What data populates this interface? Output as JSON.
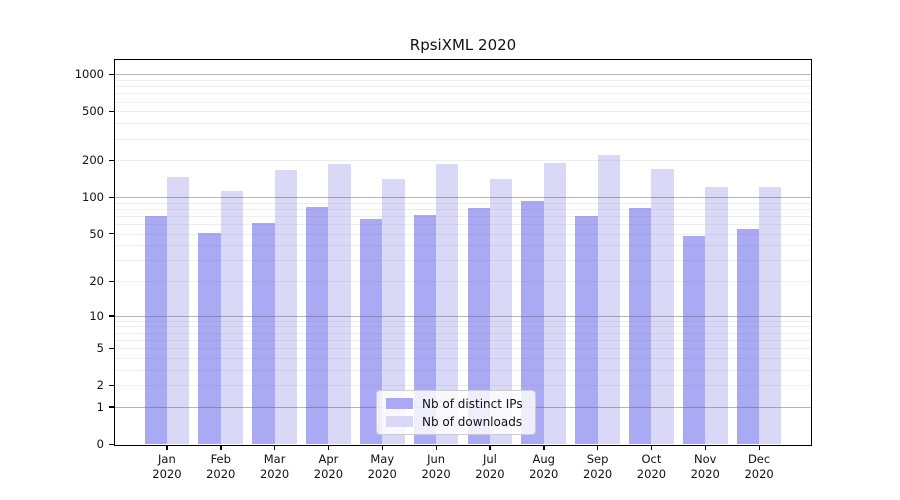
{
  "title": "RpsiXML 2020",
  "colors": {
    "background": "#ffffff",
    "ips_bar": "#a9a9f4",
    "downloads_bar": "#d9d9f7",
    "axis": "#000000",
    "grid_major": "#b5b5b5",
    "grid_minor": "#e9e9e9",
    "legend_border": "#cccccc"
  },
  "legend": {
    "items": [
      {
        "label": "Nb of distinct IPs",
        "series": "ips"
      },
      {
        "label": "Nb of downloads",
        "series": "downloads"
      }
    ]
  },
  "chart_data": {
    "type": "bar",
    "title": "RpsiXML 2020",
    "categories": [
      "Jan 2020",
      "Feb 2020",
      "Mar 2020",
      "Apr 2020",
      "May 2020",
      "Jun 2020",
      "Jul 2020",
      "Aug 2020",
      "Sep 2020",
      "Oct 2020",
      "Nov 2020",
      "Dec 2020"
    ],
    "x_months": [
      "Jan",
      "Feb",
      "Mar",
      "Apr",
      "May",
      "Jun",
      "Jul",
      "Aug",
      "Sep",
      "Oct",
      "Nov",
      "Dec"
    ],
    "x_year": "2020",
    "series": [
      {
        "name": "Nb of distinct IPs",
        "color": "#a9a9f4",
        "values": [
          70,
          51,
          61,
          83,
          66,
          71,
          81,
          93,
          70,
          81,
          48,
          55
        ]
      },
      {
        "name": "Nb of downloads",
        "color": "#d9d9f7",
        "values": [
          147,
          112,
          166,
          186,
          140,
          186,
          140,
          190,
          220,
          169,
          120,
          121
        ]
      }
    ],
    "xlabel": "",
    "ylabel": "",
    "y_scale": "log1p",
    "y_ticks": [
      0,
      1,
      2,
      5,
      10,
      20,
      50,
      100,
      200,
      500,
      1000
    ],
    "ylim": [
      0,
      1310
    ],
    "grid": true,
    "legend_position": "lower center"
  }
}
